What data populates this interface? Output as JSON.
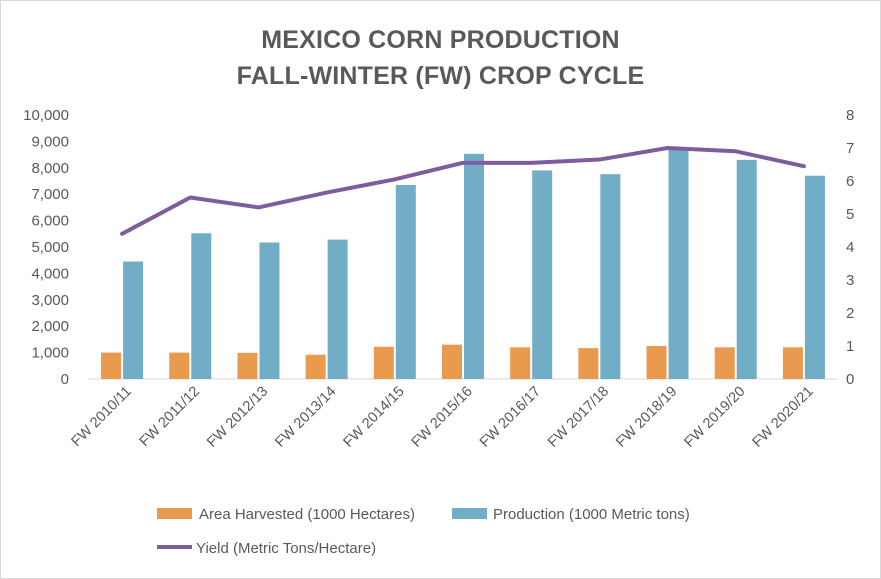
{
  "chart_data": {
    "type": "bar",
    "title_lines": [
      "MEXICO CORN PRODUCTION",
      "FALL-WINTER (FW) CROP CYCLE"
    ],
    "categories": [
      "FW 2010/11",
      "FW 2011/12",
      "FW 2012/13",
      "FW 2013/14",
      "FW 2014/15",
      "FW 2015/16",
      "FW 2016/17",
      "FW 2017/18",
      "FW 2018/19",
      "FW 2019/20",
      "FW 2020/21"
    ],
    "series": [
      {
        "name": "Area Harvested (1000 Hectares)",
        "type": "bar",
        "axis": "left",
        "color": "#e99a4f",
        "values": [
          1000,
          1000,
          990,
          920,
          1220,
          1300,
          1200,
          1170,
          1250,
          1200,
          1200
        ]
      },
      {
        "name": "Production (1000 Metric tons)",
        "type": "bar",
        "axis": "left",
        "color": "#72adc8",
        "values": [
          4450,
          5520,
          5170,
          5280,
          7350,
          8530,
          7900,
          7760,
          8760,
          8300,
          7700
        ]
      },
      {
        "name": "Yield (Metric Tons/Hectare)",
        "type": "line",
        "axis": "right",
        "color": "#7e5d9f",
        "values": [
          4.4,
          5.5,
          5.2,
          5.65,
          6.05,
          6.55,
          6.55,
          6.65,
          7.0,
          6.9,
          6.45
        ]
      }
    ],
    "y_left": {
      "min": 0,
      "max": 10000,
      "step": 1000,
      "tick_labels": [
        "0",
        "1,000",
        "2,000",
        "3,000",
        "4,000",
        "5,000",
        "6,000",
        "7,000",
        "8,000",
        "9,000",
        "10,000"
      ]
    },
    "y_right": {
      "min": 0,
      "max": 8,
      "step": 1,
      "tick_labels": [
        "0",
        "1",
        "2",
        "3",
        "4",
        "5",
        "6",
        "7",
        "8"
      ]
    },
    "grid": false,
    "legend_position": "bottom"
  }
}
